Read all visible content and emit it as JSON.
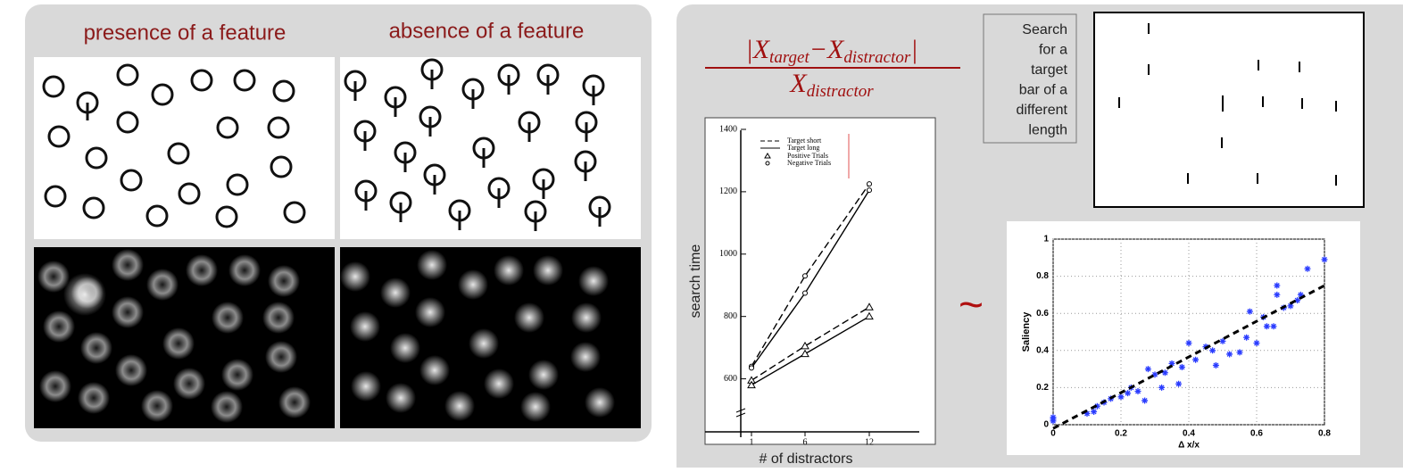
{
  "left_panel": {
    "captions": [
      "presence of a feature",
      "absence of a feature"
    ]
  },
  "formula": {
    "numerator": [
      "|X",
      "target",
      "−X",
      "distractor",
      "|"
    ],
    "denominator": [
      "X",
      "distractor"
    ]
  },
  "search_box": {
    "lines": [
      "Search",
      "for a",
      "target",
      "bar of a",
      "different",
      "length"
    ]
  },
  "tilde": "~",
  "search_chart": {
    "type": "line",
    "ylabel": "search time",
    "xlabel": "# of distractors",
    "x": [
      1,
      6,
      12
    ],
    "xticks": [
      1,
      6,
      12
    ],
    "xlim": [
      0,
      15
    ],
    "yticks": [
      600,
      800,
      1000,
      1200,
      1400
    ],
    "ylim": [
      430,
      1420
    ],
    "line_legend": [
      "Target short",
      "Target long"
    ],
    "marker_legend": [
      "Positive Trials",
      "Negative Trials"
    ],
    "series": [
      {
        "line_style": "dashed",
        "marker": "triangle",
        "values": [
          595,
          705,
          830
        ]
      },
      {
        "line_style": "solid",
        "marker": "triangle",
        "values": [
          580,
          680,
          800
        ]
      },
      {
        "line_style": "dashed",
        "marker": "circle",
        "values": [
          640,
          930,
          1225
        ]
      },
      {
        "line_style": "solid",
        "marker": "circle",
        "values": [
          635,
          875,
          1205
        ]
      }
    ]
  },
  "saliency_chart": {
    "type": "scatter",
    "xlabel": "Δ x/x",
    "ylabel": "Saliency",
    "color": "#2a3cff",
    "grid": true,
    "xlim": [
      0,
      0.8
    ],
    "ylim": [
      0,
      1
    ],
    "xticks": [
      0,
      0.2,
      0.4,
      0.6,
      0.8
    ],
    "yticks": [
      0,
      0.2,
      0.4,
      0.6,
      0.8,
      1
    ],
    "x": [
      0,
      0,
      0,
      0.1,
      0.12,
      0.13,
      0.15,
      0.17,
      0.2,
      0.22,
      0.23,
      0.25,
      0.27,
      0.28,
      0.3,
      0.32,
      0.33,
      0.35,
      0.37,
      0.38,
      0.4,
      0.42,
      0.45,
      0.47,
      0.48,
      0.5,
      0.52,
      0.55,
      0.57,
      0.58,
      0.6,
      0.62,
      0.63,
      0.65,
      0.66,
      0.66,
      0.68,
      0.7,
      0.72,
      0.73,
      0.75,
      0.8
    ],
    "y": [
      0.02,
      0.03,
      0.04,
      0.06,
      0.07,
      0.1,
      0.12,
      0.14,
      0.15,
      0.17,
      0.2,
      0.18,
      0.13,
      0.3,
      0.27,
      0.2,
      0.28,
      0.33,
      0.22,
      0.31,
      0.44,
      0.35,
      0.42,
      0.4,
      0.32,
      0.45,
      0.38,
      0.39,
      0.47,
      0.61,
      0.44,
      0.58,
      0.53,
      0.53,
      0.75,
      0.7,
      0.63,
      0.64,
      0.67,
      0.7,
      0.84,
      0.89
    ],
    "trend": {
      "x": [
        0,
        0.8
      ],
      "y": [
        -0.02,
        0.75
      ]
    }
  }
}
